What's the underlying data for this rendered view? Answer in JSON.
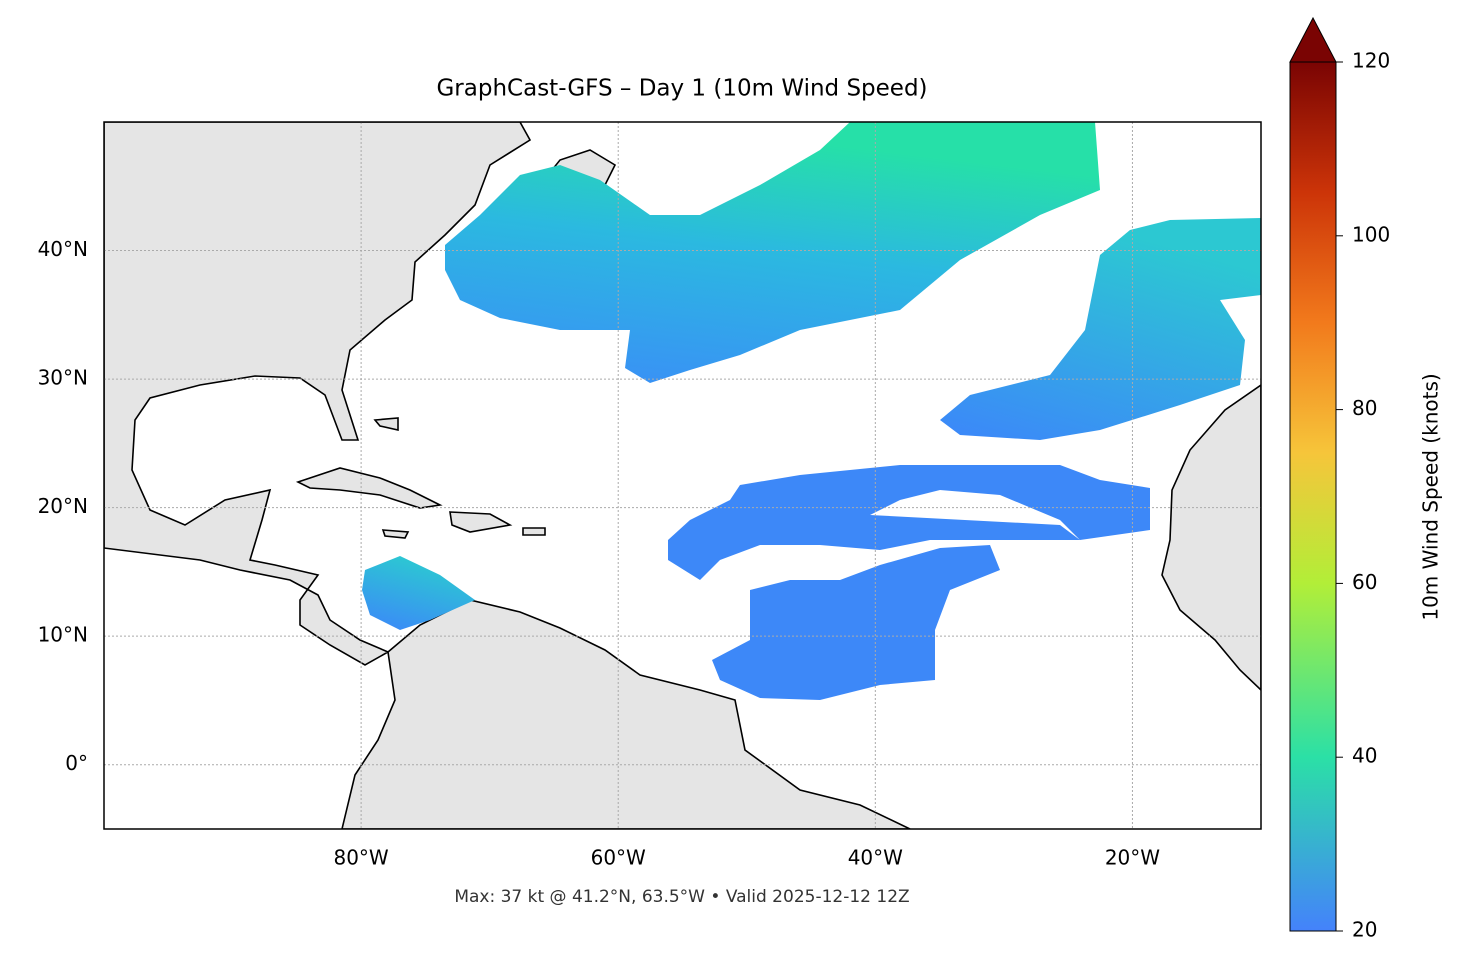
{
  "chart_data": {
    "type": "map",
    "title": "GraphCast-GFS – Day 1 (10m Wind Speed)",
    "footer": "Max: 37 kt @ 41.2°N, 63.5°W • Valid 2025-12-12 12Z",
    "xlim": [
      -100,
      -10
    ],
    "ylim": [
      -5,
      50
    ],
    "xticks": [
      {
        "value": -80,
        "label": "80°W"
      },
      {
        "value": -60,
        "label": "60°W"
      },
      {
        "value": -40,
        "label": "40°W"
      },
      {
        "value": -20,
        "label": "20°W"
      }
    ],
    "yticks": [
      {
        "value": 0,
        "label": "0°"
      },
      {
        "value": 10,
        "label": "10°N"
      },
      {
        "value": 20,
        "label": "20°N"
      },
      {
        "value": 30,
        "label": "30°N"
      },
      {
        "value": 40,
        "label": "40°N"
      }
    ],
    "grid": true,
    "colorbar": {
      "label": "10m Wind Speed (knots)",
      "lim": [
        20,
        120
      ],
      "ticks": [
        20,
        40,
        60,
        80,
        100,
        120
      ]
    }
  }
}
